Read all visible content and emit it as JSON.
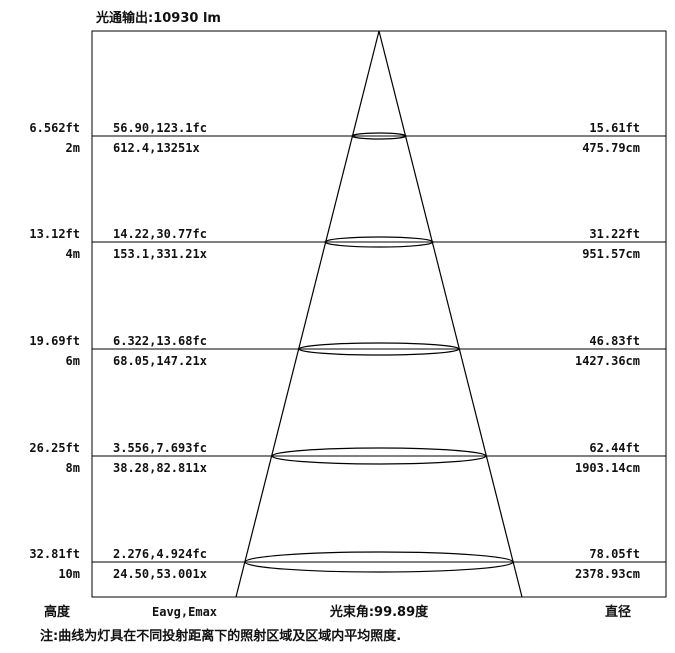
{
  "header": {
    "luminous_flux": "光通输出:10930 lm"
  },
  "footer": {
    "height_label": "高度",
    "illuminance_label": "Eavg,Emax",
    "beam_angle": "光束角:99.89度",
    "diameter_label": "直径",
    "note": "注:曲线为灯具在不同投射距离下的照射区域及区域内平均照度."
  },
  "rows": [
    {
      "height_ft": "6.562ft",
      "height_m": "2m",
      "illum_fc": "56.90,123.1fc",
      "illum_lx": "612.4,13251x",
      "diam_ft": "15.61ft",
      "diam_cm": "475.79cm"
    },
    {
      "height_ft": "13.12ft",
      "height_m": "4m",
      "illum_fc": "14.22,30.77fc",
      "illum_lx": "153.1,331.21x",
      "diam_ft": "31.22ft",
      "diam_cm": "951.57cm"
    },
    {
      "height_ft": "19.69ft",
      "height_m": "6m",
      "illum_fc": "6.322,13.68fc",
      "illum_lx": "68.05,147.21x",
      "diam_ft": "46.83ft",
      "diam_cm": "1427.36cm"
    },
    {
      "height_ft": "26.25ft",
      "height_m": "8m",
      "illum_fc": "3.556,7.693fc",
      "illum_lx": "38.28,82.811x",
      "diam_ft": "62.44ft",
      "diam_cm": "1903.14cm"
    },
    {
      "height_ft": "32.81ft",
      "height_m": "10m",
      "illum_fc": "2.276,4.924fc",
      "illum_lx": "24.50,53.001x",
      "diam_ft": "78.05ft",
      "diam_cm": "2378.93cm"
    }
  ]
}
